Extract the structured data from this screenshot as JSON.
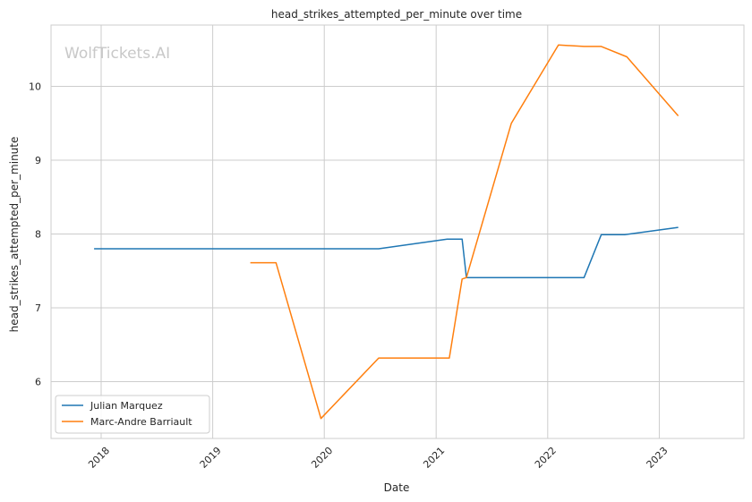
{
  "chart_data": {
    "type": "line",
    "title": "head_strikes_attempted_per_minute over time",
    "xlabel": "Date",
    "ylabel": "head_strikes_attempted_per_minute",
    "watermark": "WolfTickets.AI",
    "x_ticks": [
      "2018",
      "2019",
      "2020",
      "2021",
      "2022",
      "2023"
    ],
    "y_ticks": [
      6,
      7,
      8,
      9,
      10
    ],
    "xlim": [
      "2017-07-21",
      "2023-10-05"
    ],
    "ylim": [
      5.23,
      10.83
    ],
    "grid": true,
    "legend_position": "lower-left",
    "series": [
      {
        "name": "Julian Marquez",
        "color": "#1f77b4",
        "points": [
          {
            "x": "2017-12-09",
            "y": 7.8
          },
          {
            "x": "2020-06-27",
            "y": 7.8
          },
          {
            "x": "2021-02-06",
            "y": 7.93
          },
          {
            "x": "2021-03-27",
            "y": 7.93
          },
          {
            "x": "2021-04-10",
            "y": 7.41
          },
          {
            "x": "2022-04-30",
            "y": 7.41
          },
          {
            "x": "2022-06-25",
            "y": 7.99
          },
          {
            "x": "2022-09-10",
            "y": 7.99
          },
          {
            "x": "2023-03-04",
            "y": 8.09
          }
        ]
      },
      {
        "name": "Marc-Andre Barriault",
        "color": "#ff7f0e",
        "points": [
          {
            "x": "2019-05-04",
            "y": 7.61
          },
          {
            "x": "2019-07-27",
            "y": 7.61
          },
          {
            "x": "2019-12-21",
            "y": 5.5
          },
          {
            "x": "2020-06-27",
            "y": 6.32
          },
          {
            "x": "2021-02-13",
            "y": 6.32
          },
          {
            "x": "2021-03-27",
            "y": 7.39
          },
          {
            "x": "2021-04-10",
            "y": 7.41
          },
          {
            "x": "2021-09-04",
            "y": 9.5
          },
          {
            "x": "2022-02-05",
            "y": 10.56
          },
          {
            "x": "2022-04-30",
            "y": 10.54
          },
          {
            "x": "2022-06-25",
            "y": 10.54
          },
          {
            "x": "2022-09-17",
            "y": 10.4
          },
          {
            "x": "2023-03-04",
            "y": 9.6
          }
        ]
      }
    ]
  }
}
